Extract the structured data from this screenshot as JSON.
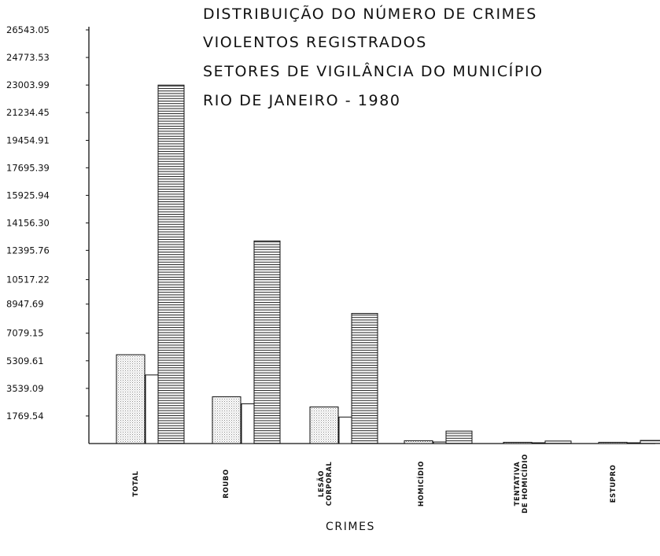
{
  "title_lines": [
    "DISTRIBUIÇÃO DO NÚMERO DE CRIMES",
    "VIOLENTOS REGISTRADOS",
    "SETORES DE VIGILÂNCIA DO MUNICÍPIO",
    "RIO DE JANEIRO - 1980"
  ],
  "chart_data": {
    "type": "bar",
    "title": "DISTRIBUIÇÃO DO NÚMERO DE CRIMES VIOLENTOS REGISTRADOS SETORES DE VIGILÂNCIA DO MUNICÍPIO RIO DE JANEIRO - 1980",
    "xlabel": "CRIMES",
    "ylabel": "",
    "categories": [
      [
        "TOTAL"
      ],
      [
        "ROUBO"
      ],
      [
        "LESÃO",
        "CORPORAL"
      ],
      [
        "HOMICÍDIO"
      ],
      [
        "TENTATIVA",
        "DE HOMICÍDIO"
      ],
      [
        "ESTUPRO"
      ]
    ],
    "yticks": [
      "1769.54",
      "3539.09",
      "5309.61",
      "7079.15",
      "8947.69",
      "10517.22",
      "12395.76",
      "14156.30",
      "15925.94",
      "17695.39",
      "19454.91",
      "21234.45",
      "23003.99",
      "24773.53",
      "26543.05"
    ],
    "ylim": [
      0,
      26543.05
    ],
    "legend": "none",
    "series": [
      {
        "pattern": "dotted",
        "values": [
          5700,
          3000,
          2350,
          180,
          80,
          80
        ]
      },
      {
        "pattern": "plain",
        "values": [
          4400,
          2550,
          1700,
          100,
          50,
          50
        ]
      },
      {
        "pattern": "horizontal-lines",
        "values": [
          23000,
          13000,
          8350,
          800,
          160,
          200
        ]
      }
    ]
  }
}
